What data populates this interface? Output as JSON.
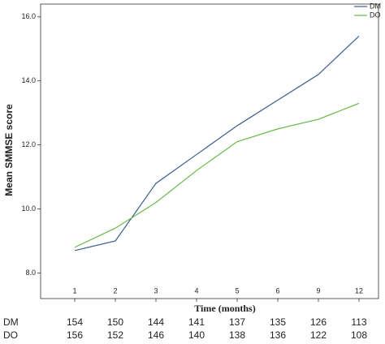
{
  "chart_data": {
    "type": "line",
    "x_label": "Time (months)",
    "y_label": "Mean SMMSE score",
    "categories": [
      "1",
      "2",
      "3",
      "4",
      "5",
      "6",
      "9",
      "12"
    ],
    "series": [
      {
        "name": "DM",
        "color": "#3b5b8f",
        "values": [
          8.7,
          9.0,
          10.8,
          11.7,
          12.6,
          13.4,
          14.2,
          15.4
        ]
      },
      {
        "name": "DO",
        "color": "#6ab84a",
        "values": [
          8.8,
          9.4,
          10.2,
          11.2,
          12.1,
          12.5,
          12.8,
          13.3
        ]
      }
    ],
    "ylim": [
      7.2,
      16.4
    ],
    "yticks": [
      {
        "value": 8,
        "label": "8.0"
      },
      {
        "value": 10,
        "label": "10.0"
      },
      {
        "value": 12,
        "label": "12.0"
      },
      {
        "value": 14,
        "label": "14.0"
      },
      {
        "value": 16,
        "label": "16.0"
      }
    ],
    "legend": "top-right",
    "table": [
      {
        "name": "DM",
        "values": [
          154,
          150,
          144,
          141,
          137,
          135,
          126,
          113
        ]
      },
      {
        "name": "DO",
        "values": [
          156,
          152,
          146,
          140,
          138,
          136,
          122,
          108
        ]
      }
    ]
  }
}
